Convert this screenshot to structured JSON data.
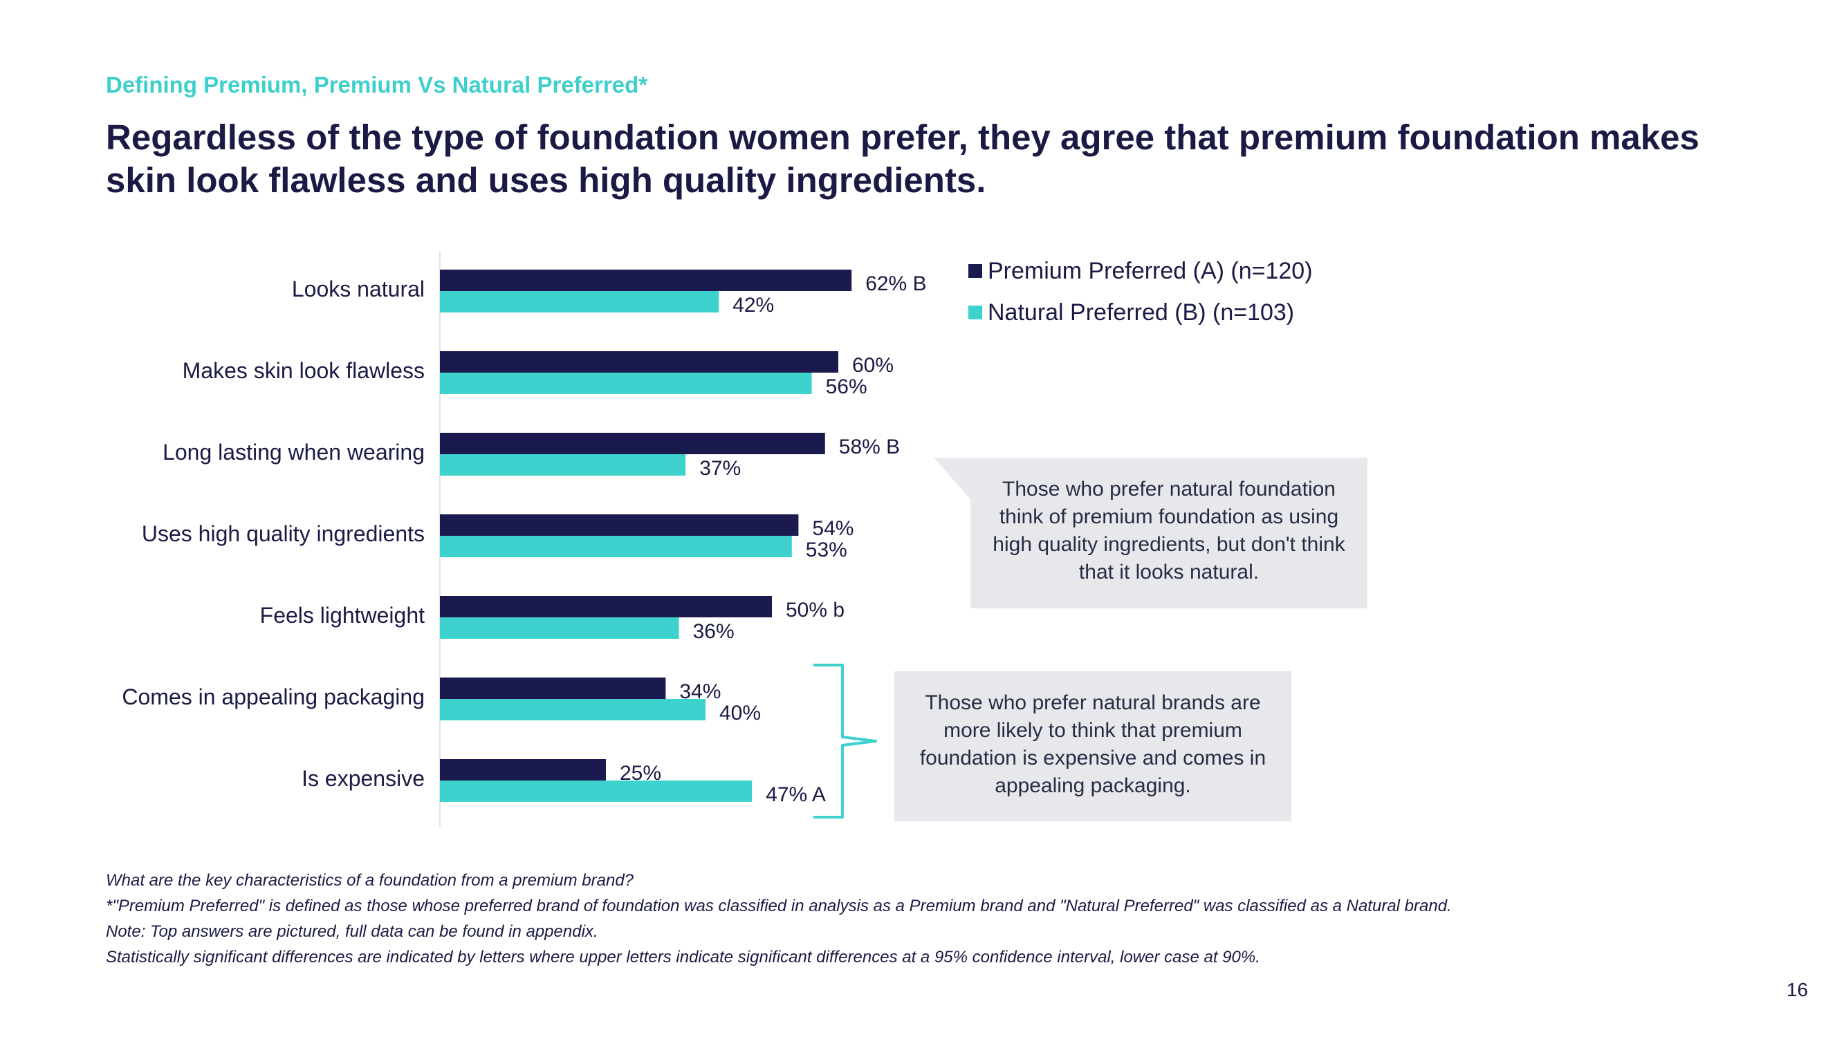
{
  "header": {
    "eyebrow": "Defining Premium, Premium Vs Natural Preferred*",
    "headline": "Regardless of the type of foundation women prefer, they agree that premium foundation makes skin look flawless and uses high quality ingredients."
  },
  "colors": {
    "premium": "#1b1a4e",
    "natural": "#3ed2cf",
    "accent_text": "#3ecfcc",
    "callout_bg": "#e6e8eb"
  },
  "chart_data": {
    "type": "bar",
    "orientation": "horizontal",
    "categories": [
      "Looks natural",
      "Makes skin look flawless",
      "Long lasting when wearing",
      "Uses high quality ingredients",
      "Feels lightweight",
      "Comes in appealing packaging",
      "Is expensive"
    ],
    "series": [
      {
        "name": "Premium Preferred (A) (n=120)",
        "values": [
          62,
          60,
          58,
          54,
          50,
          34,
          25
        ],
        "labels": [
          "62% B",
          "60%",
          "58%  B",
          "54%",
          "50% b",
          "34%",
          "25%"
        ]
      },
      {
        "name": "Natural Preferred (B) (n=103)",
        "values": [
          42,
          56,
          37,
          53,
          36,
          40,
          47
        ],
        "labels": [
          "42%",
          "56%",
          "37%",
          "53%",
          "36%",
          "40%",
          "47% A"
        ]
      }
    ],
    "unit": "%",
    "xlim": [
      0,
      100
    ],
    "grid": false,
    "legend_position": "top-right"
  },
  "legend": {
    "items": [
      "Premium Preferred (A) (n=120)",
      "Natural Preferred (B) (n=103)"
    ]
  },
  "callouts": {
    "natural_ingredients": "Those who prefer natural foundation think of premium foundation as using high quality ingredients, but don't think that it looks natural.",
    "natural_expensive": "Those who prefer natural brands are more likely to think that premium foundation is expensive and comes in appealing packaging."
  },
  "footer": {
    "lines": [
      "What are the key characteristics of a foundation from a premium brand?",
      "*\"Premium Preferred\" is defined as those whose preferred brand of foundation was classified in analysis as a Premium brand and \"Natural Preferred\" was classified as a Natural brand.",
      "Note: Top answers are pictured, full data can be found in appendix.",
      "Statistically significant differences are indicated by letters where upper letters indicate significant differences at a 95% confidence interval, lower case at 90%."
    ]
  },
  "page_number": "16"
}
